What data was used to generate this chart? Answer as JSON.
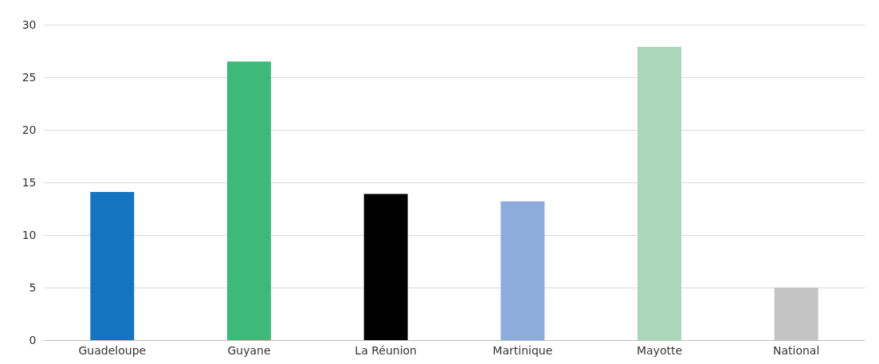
{
  "chart_data": {
    "type": "bar",
    "categories": [
      "Guadeloupe",
      "Guyane",
      "La Réunion",
      "Martinique",
      "Mayotte",
      "National"
    ],
    "values": [
      14.1,
      26.5,
      13.9,
      13.2,
      27.9,
      5.0
    ],
    "colors": [
      "#1574bf",
      "#3dba79",
      "#000000",
      "#8dacdb",
      "#a9d7b7",
      "#c4c4c4"
    ],
    "ylim": [
      0,
      30
    ],
    "yticks": [
      0,
      5,
      10,
      15,
      20,
      25,
      30
    ],
    "grid": "y"
  }
}
